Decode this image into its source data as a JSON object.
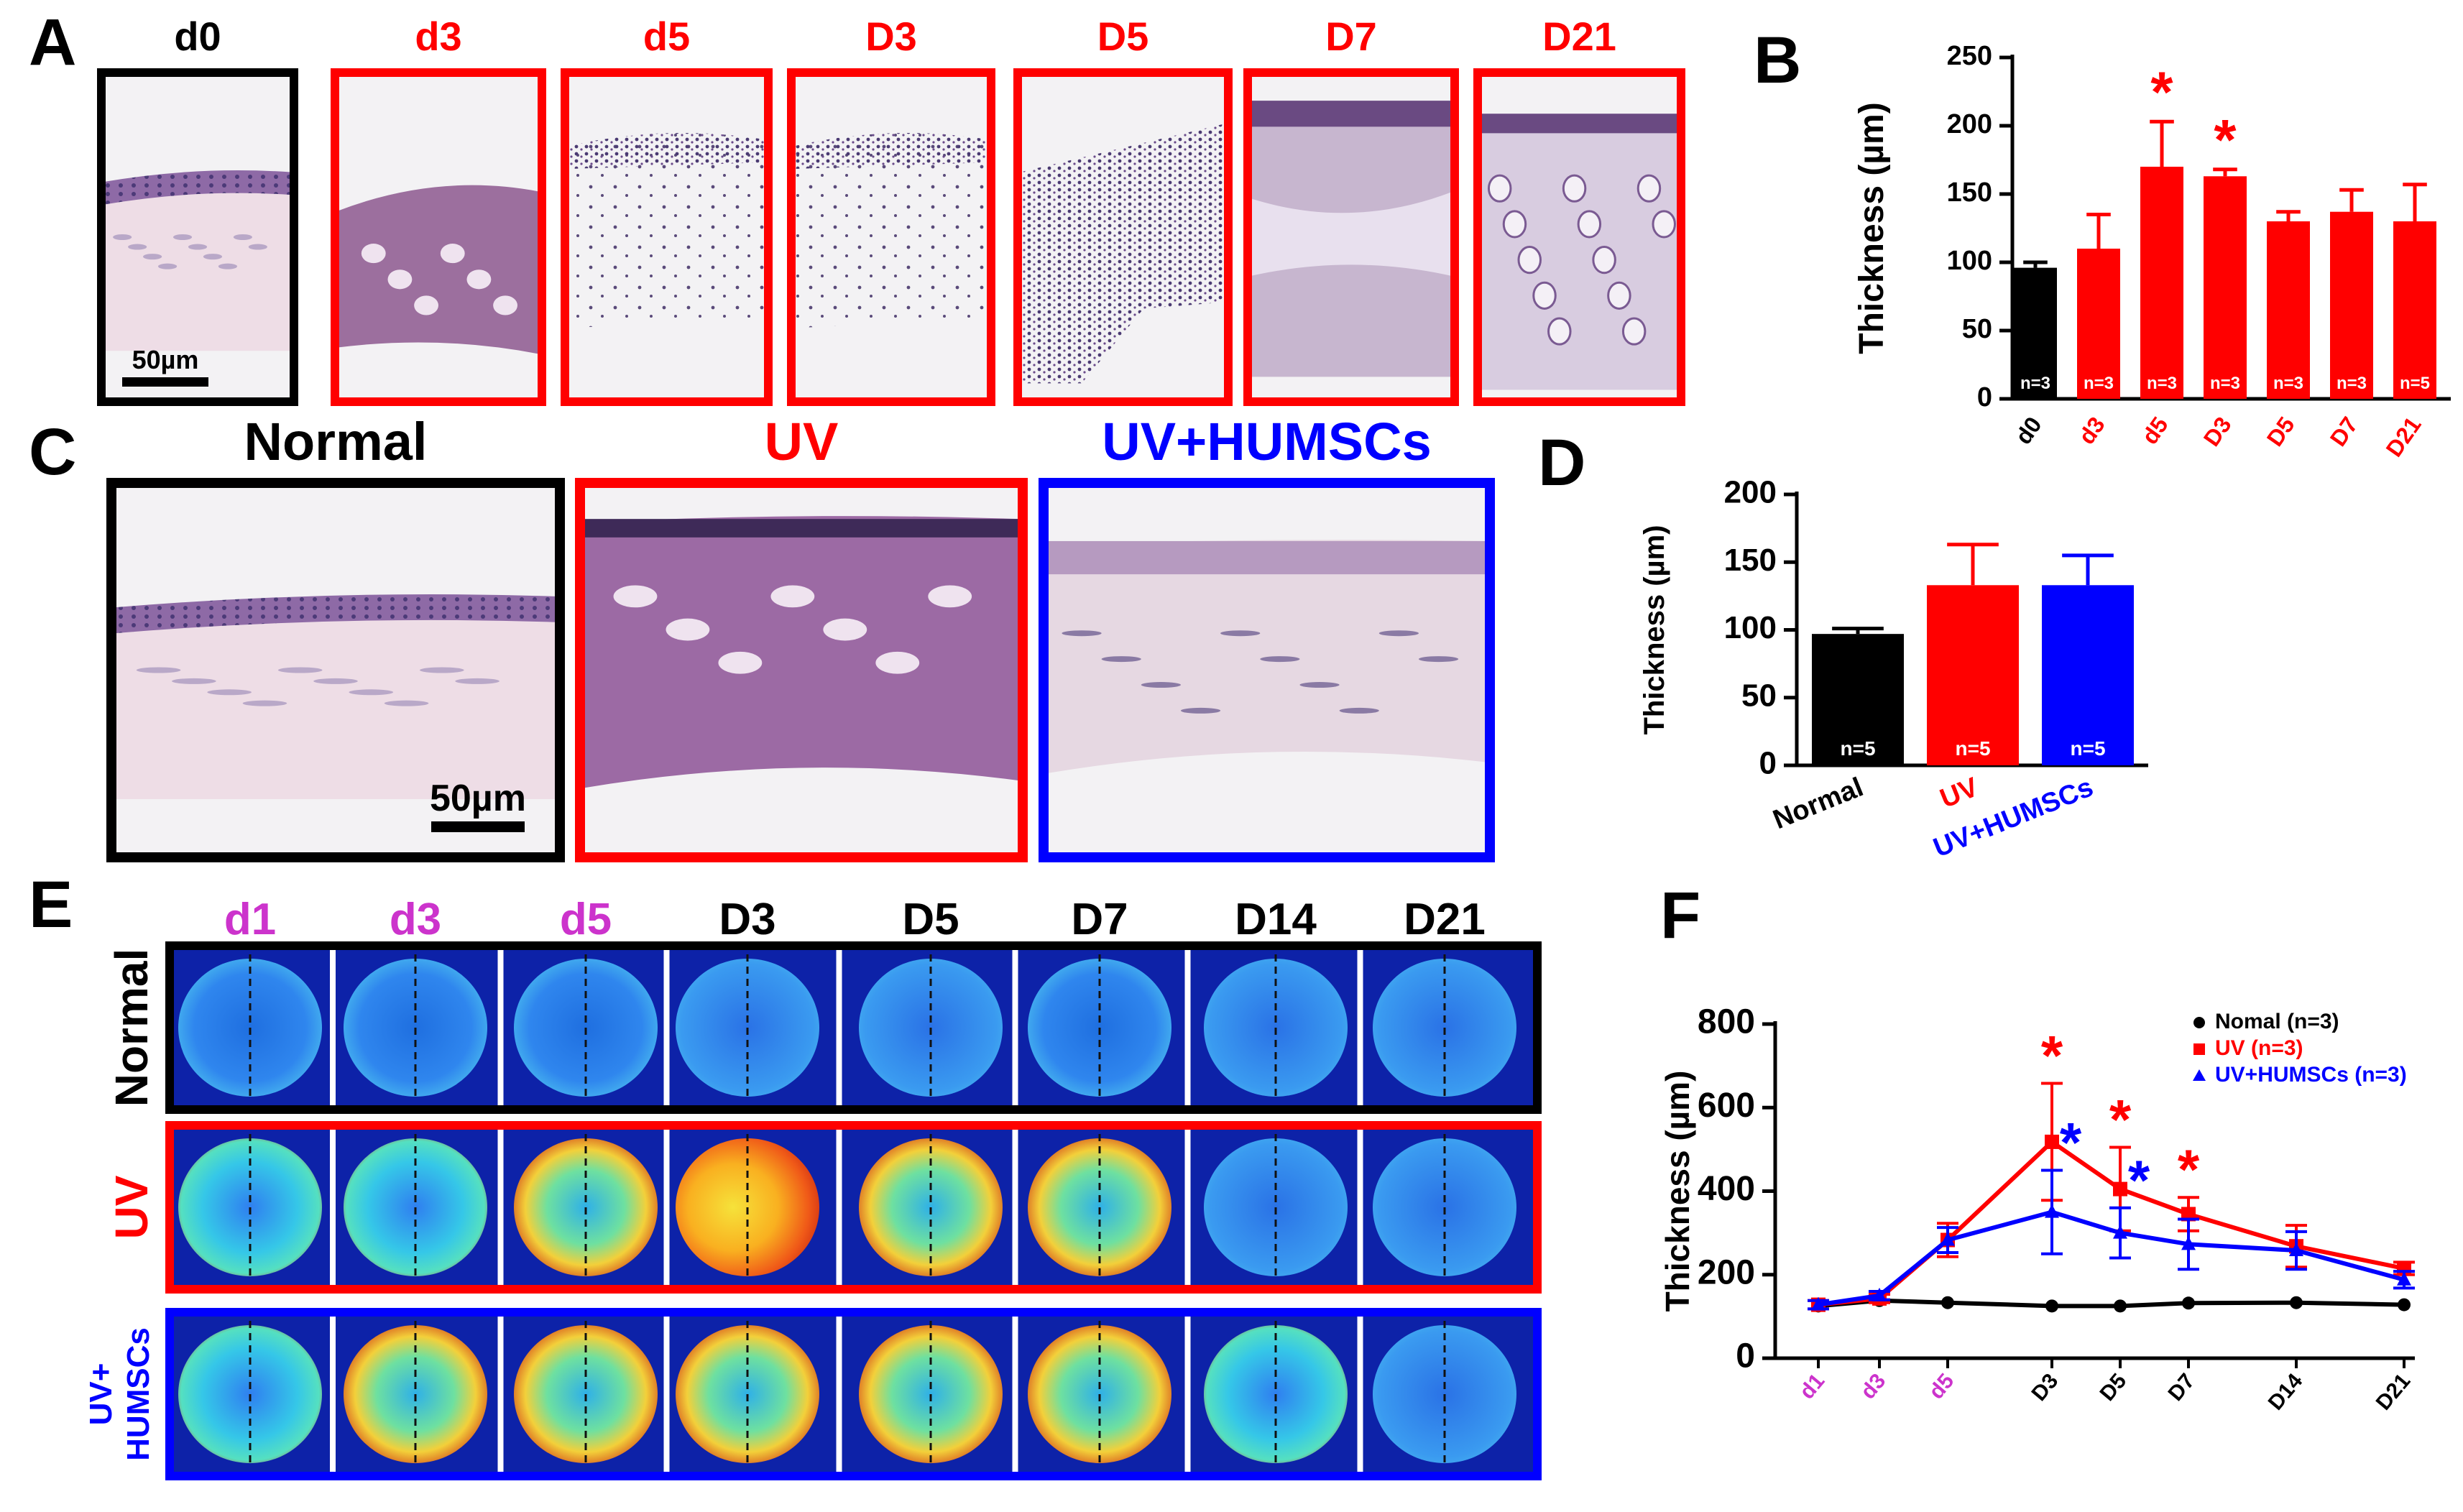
{
  "panel_letters": {
    "A": "A",
    "B": "B",
    "C": "C",
    "D": "D",
    "E": "E",
    "F": "F"
  },
  "colors": {
    "black": "#000000",
    "red": "#ff0000",
    "blue": "#0000ff",
    "magenta": "#cc33cc",
    "tissue": "#e8d6e0",
    "stain": "#6a3a7a"
  },
  "panelA": {
    "images": [
      {
        "label": "d0",
        "frame": "black"
      },
      {
        "label": "d3",
        "frame": "red"
      },
      {
        "label": "d5",
        "frame": "red"
      },
      {
        "label": "D3",
        "frame": "red"
      },
      {
        "label": "D5",
        "frame": "red"
      },
      {
        "label": "D7",
        "frame": "red"
      },
      {
        "label": "D21",
        "frame": "red"
      }
    ],
    "scale_bar": "50µm"
  },
  "panelC": {
    "images": [
      {
        "label": "Normal",
        "frame": "black"
      },
      {
        "label": "UV",
        "frame": "red"
      },
      {
        "label": "UV+HUMSCs",
        "frame": "blue"
      }
    ],
    "scale_bar": "50µm"
  },
  "panelE": {
    "columns": [
      {
        "label": "d1",
        "color": "magenta"
      },
      {
        "label": "d3",
        "color": "magenta"
      },
      {
        "label": "d5",
        "color": "magenta"
      },
      {
        "label": "D3",
        "color": "black"
      },
      {
        "label": "D5",
        "color": "black"
      },
      {
        "label": "D7",
        "color": "black"
      },
      {
        "label": "D14",
        "color": "black"
      },
      {
        "label": "D21",
        "color": "black"
      }
    ],
    "rows": [
      {
        "label": "Normal",
        "color": "black",
        "lines": [
          "Normal"
        ]
      },
      {
        "label": "UV",
        "color": "red",
        "lines": [
          "UV"
        ]
      },
      {
        "label": "UV+ HUMSCs",
        "color": "blue",
        "lines": [
          "UV+",
          "HUMSCs"
        ]
      }
    ]
  },
  "chart_data": [
    {
      "id": "B",
      "type": "bar",
      "ylabel": "Thickness (µm)",
      "ylim": [
        0,
        250
      ],
      "yticks": [
        0,
        50,
        100,
        150,
        200,
        250
      ],
      "categories": [
        "d0",
        "d3",
        "d5",
        "D3",
        "D5",
        "D7",
        "D21"
      ],
      "category_colors": [
        "black",
        "red",
        "red",
        "red",
        "red",
        "red",
        "red"
      ],
      "values": [
        96,
        110,
        170,
        163,
        130,
        137,
        130
      ],
      "errors": [
        4,
        25,
        33,
        5,
        7,
        16,
        27
      ],
      "n_labels": [
        "n=3",
        "n=3",
        "n=3",
        "n=3",
        "n=3",
        "n=3",
        "n=5"
      ],
      "significance": [
        "",
        "",
        "*",
        "*",
        "",
        "",
        ""
      ]
    },
    {
      "id": "D",
      "type": "bar",
      "ylabel": "Thickness (µm)",
      "ylim": [
        0,
        200
      ],
      "yticks": [
        0,
        50,
        100,
        150,
        200
      ],
      "categories": [
        "Normal",
        "UV",
        "UV+HUMSCs"
      ],
      "category_colors": [
        "black",
        "red",
        "blue"
      ],
      "values": [
        97,
        133,
        133
      ],
      "errors": [
        4,
        30,
        22
      ],
      "n_labels": [
        "n=5",
        "n=5",
        "n=5"
      ]
    },
    {
      "id": "F",
      "type": "line",
      "ylabel": "Thickness (µm)",
      "ylim": [
        0,
        800
      ],
      "yticks": [
        0,
        200,
        400,
        600,
        800
      ],
      "x": [
        "d1",
        "d3",
        "d5",
        "D3",
        "D5",
        "D7",
        "D14",
        "D21"
      ],
      "x_colors": [
        "magenta",
        "magenta",
        "magenta",
        "black",
        "black",
        "black",
        "black",
        "black"
      ],
      "series": [
        {
          "name": "Nomal (n=3)",
          "color": "black",
          "marker": "circle",
          "values": [
            125,
            138,
            133,
            125,
            125,
            132,
            133,
            128
          ],
          "errors": [
            0,
            0,
            0,
            0,
            0,
            0,
            0,
            0
          ],
          "significance": [
            "",
            "",
            "",
            "",
            "",
            "",
            "",
            ""
          ]
        },
        {
          "name": "UV (n=3)",
          "color": "red",
          "marker": "square",
          "values": [
            128,
            143,
            283,
            518,
            405,
            345,
            268,
            215
          ],
          "errors": [
            10,
            10,
            40,
            140,
            100,
            40,
            50,
            15
          ],
          "significance": [
            "",
            "",
            "",
            "*",
            "*",
            "*",
            "",
            ""
          ]
        },
        {
          "name": "UV+HUMSCs (n=3)",
          "color": "blue",
          "marker": "triangle",
          "values": [
            128,
            150,
            283,
            350,
            300,
            273,
            258,
            188
          ],
          "errors": [
            10,
            10,
            30,
            100,
            60,
            60,
            45,
            20
          ],
          "significance": [
            "",
            "",
            "",
            "*",
            "*",
            "",
            "",
            ""
          ]
        }
      ]
    }
  ]
}
